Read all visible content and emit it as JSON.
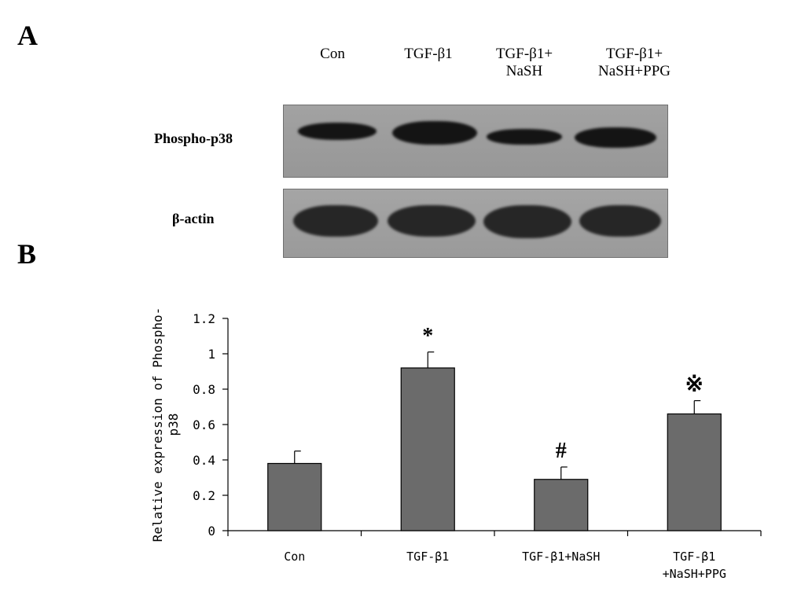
{
  "panel_labels": {
    "a": "A",
    "b": "B"
  },
  "blot": {
    "lanes": [
      {
        "line1": "Con",
        "line2": ""
      },
      {
        "line1": "TGF-β1",
        "line2": ""
      },
      {
        "line1": "TGF-β1+",
        "line2": "NaSH"
      },
      {
        "line1": "TGF-β1+",
        "line2": "NaSH+PPG"
      }
    ],
    "rows": [
      {
        "label": "Phospho-p38"
      },
      {
        "label": "β-actin"
      }
    ]
  },
  "chart_data": {
    "type": "bar",
    "categories": [
      [
        "Con"
      ],
      [
        "TGF-β1"
      ],
      [
        "TGF-β1+NaSH"
      ],
      [
        "TGF-β1",
        "+NaSH+PPG"
      ]
    ],
    "values": [
      0.38,
      0.92,
      0.29,
      0.66
    ],
    "errors": [
      0.07,
      0.09,
      0.07,
      0.075
    ],
    "annotations": [
      "",
      "*",
      "#",
      "※"
    ],
    "ylabel_lines": [
      "Relative expression of Phospho-",
      "p38"
    ],
    "xlabel": "",
    "ylim": [
      0,
      1.2
    ],
    "yticks": [
      0,
      0.2,
      0.4,
      0.6,
      0.8,
      1,
      1.2
    ],
    "ytick_labels": [
      "0",
      "0.2",
      "0.4",
      "0.6",
      "0.8",
      "1",
      "1.2"
    ],
    "bar_color": "#6b6b6b",
    "grid": false,
    "legend": "none"
  }
}
